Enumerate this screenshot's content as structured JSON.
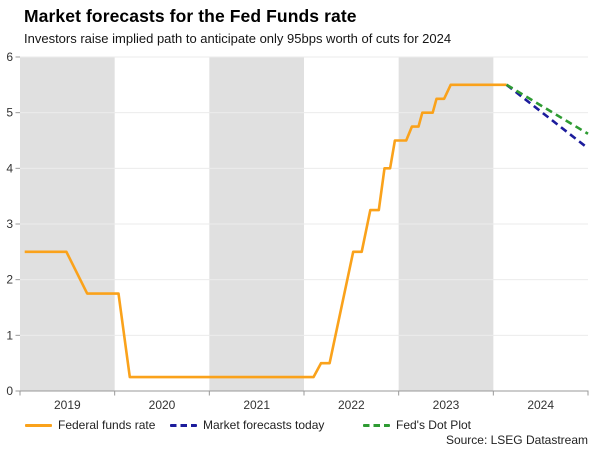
{
  "header": {
    "title": "Market forecasts for the Fed Funds rate",
    "subtitle": "Investors raise implied path to anticipate only 95bps worth of cuts for 2024"
  },
  "source": "Source: LSEG Datastream",
  "chart_data": {
    "type": "line",
    "title": "Market forecasts for the Fed Funds rate",
    "subtitle": "Investors raise implied path to anticipate only 95bps worth of cuts for 2024",
    "x_axis": {
      "range": [
        2019,
        2025
      ],
      "boundary_ticks": [
        2019,
        2020,
        2021,
        2022,
        2023,
        2024,
        2025
      ],
      "year_labels": [
        "2019",
        "2020",
        "2021",
        "2022",
        "2023",
        "2024"
      ],
      "shaded_years": [
        2019,
        2021,
        2023
      ]
    },
    "y_axis": {
      "range": [
        0,
        6
      ],
      "ticks": [
        0,
        1,
        2,
        3,
        4,
        5,
        6
      ],
      "tick_labels": [
        "0",
        "1",
        "2",
        "3",
        "4",
        "5",
        "6"
      ]
    },
    "grid": true,
    "legend_position": "bottom",
    "colors": {
      "band_gray": "#e0e0e0",
      "gridline": "#ebebeb",
      "axis": "#999999",
      "tick_text": "#333333",
      "fed_funds_orange": "#faa21b",
      "market_navy": "#1c1c9c",
      "dotplot_green": "#2e9b32"
    },
    "series": [
      {
        "name": "Federal funds rate",
        "color": "#faa21b",
        "dashed": false,
        "points": [
          [
            2019.05,
            2.5
          ],
          [
            2019.49,
            2.5
          ],
          [
            2019.71,
            1.75
          ],
          [
            2020.04,
            1.75
          ],
          [
            2020.16,
            0.25
          ],
          [
            2022.1,
            0.25
          ],
          [
            2022.18,
            0.5
          ],
          [
            2022.27,
            0.5
          ],
          [
            2022.52,
            2.5
          ],
          [
            2022.61,
            2.5
          ],
          [
            2022.7,
            3.25
          ],
          [
            2022.79,
            3.25
          ],
          [
            2022.85,
            4.0
          ],
          [
            2022.91,
            4.0
          ],
          [
            2022.96,
            4.5
          ],
          [
            2023.08,
            4.5
          ],
          [
            2023.14,
            4.75
          ],
          [
            2023.21,
            4.75
          ],
          [
            2023.25,
            5.0
          ],
          [
            2023.36,
            5.0
          ],
          [
            2023.4,
            5.25
          ],
          [
            2023.48,
            5.25
          ],
          [
            2023.55,
            5.5
          ],
          [
            2024.14,
            5.5
          ]
        ]
      },
      {
        "name": "Market forecasts today",
        "color": "#1c1c9c",
        "dashed": true,
        "points": [
          [
            2024.14,
            5.5
          ],
          [
            2024.97,
            4.4
          ]
        ]
      },
      {
        "name": "Fed's Dot Plot",
        "color": "#2e9b32",
        "dashed": true,
        "points": [
          [
            2024.14,
            5.5
          ],
          [
            2025.0,
            4.62
          ]
        ]
      }
    ]
  }
}
